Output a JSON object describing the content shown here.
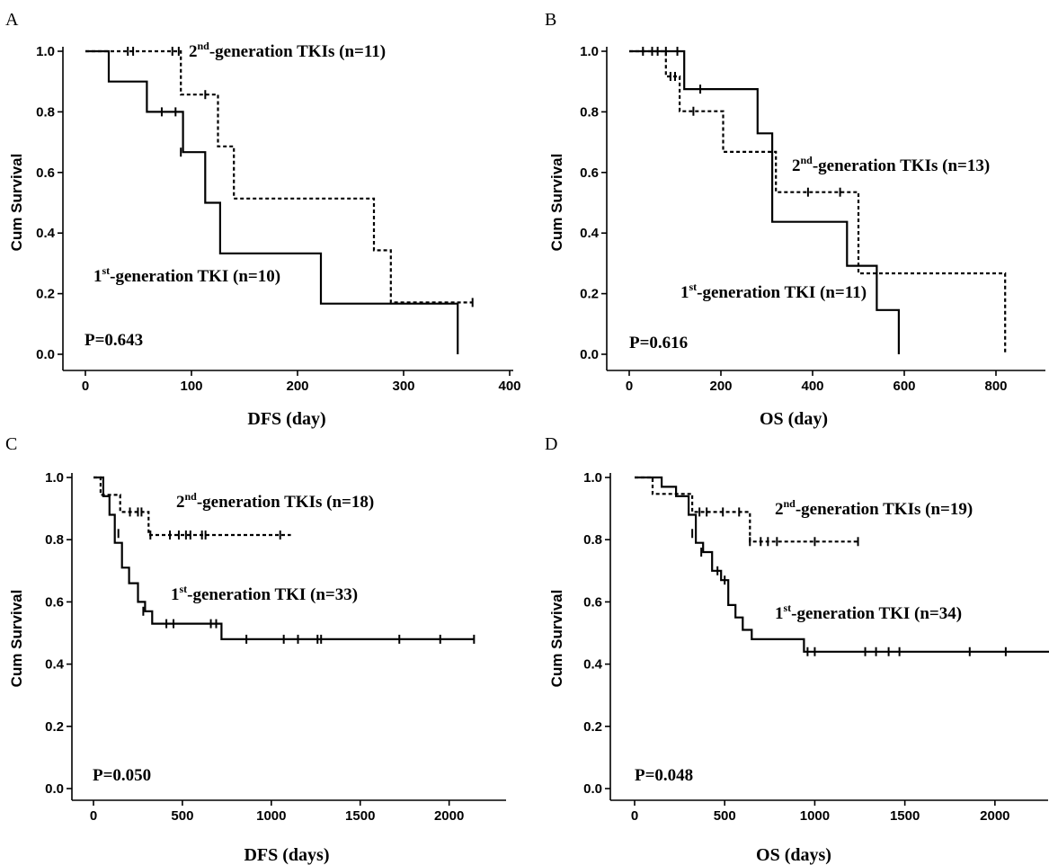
{
  "chart_data": [
    {
      "panel": "A",
      "type": "line",
      "xlabel": "DFS (day)",
      "ylabel": "Cum Survival",
      "xlim": [
        0,
        400
      ],
      "ylim": [
        0,
        1.0
      ],
      "xticks": [
        0,
        100,
        200,
        300,
        400
      ],
      "yticks": [
        0.0,
        0.2,
        0.4,
        0.6,
        0.8,
        1.0
      ],
      "p_value": "P=0.643",
      "series": [
        {
          "style": "dotted",
          "label_main": "2",
          "label_sup": "nd",
          "label_rest": "-generation TKIs  (n=11)",
          "steps": [
            [
              0,
              1.0
            ],
            [
              90,
              0.857
            ],
            [
              125,
              0.686
            ],
            [
              140,
              0.514
            ],
            [
              272,
              0.343
            ],
            [
              288,
              0.171
            ],
            [
              365,
              0.171
            ]
          ],
          "censors": [
            [
              40,
              1.0
            ],
            [
              45,
              1.0
            ],
            [
              82,
              1.0
            ],
            [
              88,
              1.0
            ],
            [
              113,
              0.857
            ],
            [
              365,
              0.171
            ]
          ]
        },
        {
          "style": "solid",
          "label_main": "1",
          "label_sup": "st",
          "label_rest": "-generation TKI  (n=10)",
          "steps": [
            [
              0,
              1.0
            ],
            [
              22,
              0.9
            ],
            [
              58,
              0.8
            ],
            [
              92,
              0.667
            ],
            [
              113,
              0.5
            ],
            [
              127,
              0.333
            ],
            [
              222,
              0.167
            ],
            [
              351,
              0.167
            ],
            [
              351,
              0.0
            ]
          ],
          "censors": [
            [
              72,
              0.8
            ],
            [
              85,
              0.8
            ],
            [
              90,
              0.667
            ]
          ]
        }
      ]
    },
    {
      "panel": "B",
      "type": "line",
      "xlabel": "OS (day)",
      "ylabel": "Cum Survival",
      "xlim": [
        0,
        900
      ],
      "ylim": [
        0,
        1.0
      ],
      "xticks": [
        0,
        200,
        400,
        600,
        800
      ],
      "yticks": [
        0.0,
        0.2,
        0.4,
        0.6,
        0.8,
        1.0
      ],
      "p_value": "P=0.616",
      "series": [
        {
          "style": "dotted",
          "label_main": "2",
          "label_sup": "nd",
          "label_rest": "-generation TKIs  (n=13)",
          "steps": [
            [
              0,
              1.0
            ],
            [
              80,
              0.917
            ],
            [
              110,
              0.802
            ],
            [
              205,
              0.668
            ],
            [
              320,
              0.535
            ],
            [
              500,
              0.267
            ],
            [
              820,
              0.267
            ],
            [
              820,
              0.0
            ]
          ],
          "censors": [
            [
              30,
              1.0
            ],
            [
              50,
              1.0
            ],
            [
              62,
              1.0
            ],
            [
              90,
              0.917
            ],
            [
              100,
              0.917
            ],
            [
              140,
              0.802
            ],
            [
              390,
              0.535
            ],
            [
              460,
              0.535
            ]
          ]
        },
        {
          "style": "solid",
          "label_main": "1",
          "label_sup": "st",
          "label_rest": "-generation TKI  (n=11)",
          "steps": [
            [
              0,
              1.0
            ],
            [
              120,
              0.875
            ],
            [
              280,
              0.729
            ],
            [
              312,
              0.437
            ],
            [
              475,
              0.292
            ],
            [
              540,
              0.146
            ],
            [
              588,
              0.0
            ]
          ],
          "censors": [
            [
              80,
              1.0
            ],
            [
              105,
              1.0
            ],
            [
              155,
              0.875
            ]
          ]
        }
      ]
    },
    {
      "panel": "C",
      "type": "line",
      "xlabel": "DFS (days)",
      "ylabel": "Cum Survival",
      "xlim": [
        0,
        2300
      ],
      "ylim": [
        0,
        1.0
      ],
      "xticks": [
        0,
        500,
        1000,
        1500,
        2000
      ],
      "yticks": [
        0.0,
        0.2,
        0.4,
        0.6,
        0.8,
        1.0
      ],
      "p_value": "P=0.050",
      "series": [
        {
          "style": "dotted",
          "label_main": "2",
          "label_sup": "nd",
          "label_rest": "-generation TKIs  (n=18)",
          "steps": [
            [
              0,
              1.0
            ],
            [
              40,
              0.944
            ],
            [
              150,
              0.889
            ],
            [
              310,
              0.815
            ],
            [
              1110,
              0.815
            ]
          ],
          "censors": [
            [
              205,
              0.889
            ],
            [
              250,
              0.889
            ],
            [
              270,
              0.889
            ],
            [
              320,
              0.815
            ],
            [
              430,
              0.815
            ],
            [
              480,
              0.815
            ],
            [
              520,
              0.815
            ],
            [
              545,
              0.815
            ],
            [
              610,
              0.815
            ],
            [
              630,
              0.815
            ],
            [
              1050,
              0.815
            ]
          ]
        },
        {
          "style": "solid",
          "label_main": "1",
          "label_sup": "st",
          "label_rest": "-generation TKI  (n=33)",
          "steps": [
            [
              0,
              1.0
            ],
            [
              55,
              0.94
            ],
            [
              90,
              0.88
            ],
            [
              120,
              0.79
            ],
            [
              160,
              0.71
            ],
            [
              200,
              0.66
            ],
            [
              250,
              0.6
            ],
            [
              290,
              0.57
            ],
            [
              330,
              0.53
            ],
            [
              720,
              0.48
            ],
            [
              2140,
              0.48
            ]
          ],
          "censors": [
            [
              140,
              0.82
            ],
            [
              280,
              0.57
            ],
            [
              410,
              0.53
            ],
            [
              450,
              0.53
            ],
            [
              660,
              0.53
            ],
            [
              690,
              0.53
            ],
            [
              860,
              0.48
            ],
            [
              1070,
              0.48
            ],
            [
              1150,
              0.48
            ],
            [
              1260,
              0.48
            ],
            [
              1280,
              0.48
            ],
            [
              1720,
              0.48
            ],
            [
              1950,
              0.48
            ],
            [
              2140,
              0.48
            ]
          ]
        }
      ]
    },
    {
      "panel": "D",
      "type": "line",
      "xlabel": "OS (days)",
      "ylabel": "Cum Survival",
      "xlim": [
        0,
        2350
      ],
      "ylim": [
        0,
        1.0
      ],
      "xticks": [
        0,
        500,
        1000,
        1500,
        2000
      ],
      "yticks": [
        0.0,
        0.2,
        0.4,
        0.6,
        0.8,
        1.0
      ],
      "p_value": "P=0.048",
      "series": [
        {
          "style": "dotted",
          "label_main": "2",
          "label_sup": "nd",
          "label_rest": "-generation TKIs  (n=19)",
          "steps": [
            [
              0,
              1.0
            ],
            [
              100,
              0.947
            ],
            [
              320,
              0.889
            ],
            [
              640,
              0.794
            ],
            [
              1240,
              0.794
            ]
          ],
          "censors": [
            [
              360,
              0.889
            ],
            [
              400,
              0.889
            ],
            [
              490,
              0.889
            ],
            [
              580,
              0.889
            ],
            [
              640,
              0.794
            ],
            [
              700,
              0.794
            ],
            [
              740,
              0.794
            ],
            [
              790,
              0.794
            ],
            [
              1000,
              0.794
            ],
            [
              1240,
              0.794
            ]
          ]
        },
        {
          "style": "solid",
          "label_main": "1",
          "label_sup": "st",
          "label_rest": "-generation TKI  (n=34)",
          "steps": [
            [
              0,
              1.0
            ],
            [
              150,
              0.97
            ],
            [
              230,
              0.94
            ],
            [
              300,
              0.88
            ],
            [
              340,
              0.79
            ],
            [
              380,
              0.76
            ],
            [
              430,
              0.7
            ],
            [
              480,
              0.67
            ],
            [
              520,
              0.59
            ],
            [
              560,
              0.55
            ],
            [
              600,
              0.51
            ],
            [
              650,
              0.48
            ],
            [
              940,
              0.44
            ],
            [
              2350,
              0.44
            ]
          ],
          "censors": [
            [
              320,
              0.82
            ],
            [
              370,
              0.76
            ],
            [
              460,
              0.7
            ],
            [
              500,
              0.67
            ],
            [
              960,
              0.44
            ],
            [
              1000,
              0.44
            ],
            [
              1280,
              0.44
            ],
            [
              1340,
              0.44
            ],
            [
              1410,
              0.44
            ],
            [
              1470,
              0.44
            ],
            [
              1860,
              0.44
            ],
            [
              2060,
              0.44
            ]
          ]
        }
      ]
    }
  ]
}
